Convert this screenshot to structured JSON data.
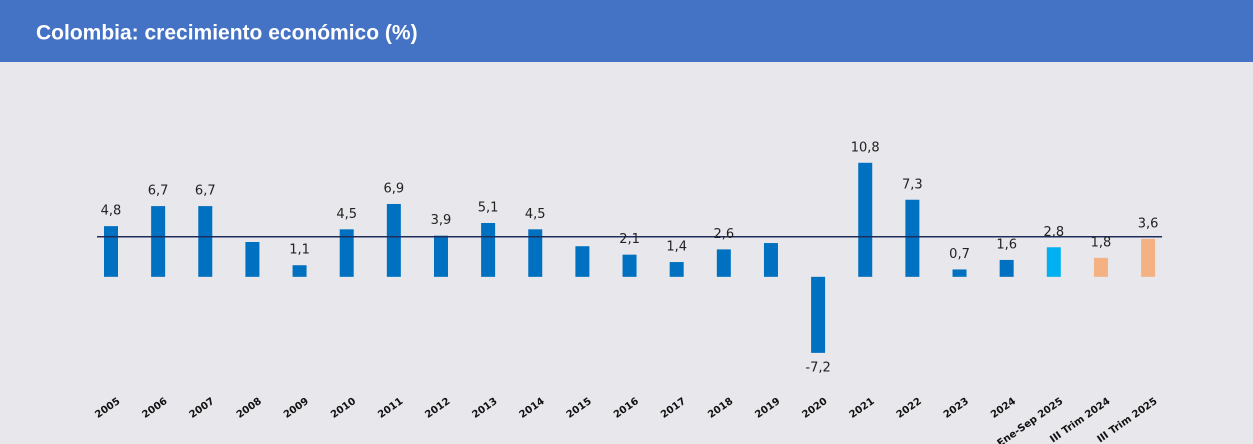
{
  "chart_data": {
    "type": "bar",
    "title": "Colombia: crecimiento económico (%)",
    "categories": [
      "2005",
      "2006",
      "2007",
      "2008",
      "2009",
      "2010",
      "2011",
      "2012",
      "2013",
      "2014",
      "2015",
      "2016",
      "2017",
      "2018",
      "2019",
      "2020",
      "2021",
      "2022",
      "2023",
      "2024",
      "Ene-Sep 2025",
      "III Trim 2024",
      "III Trim 2025"
    ],
    "values": [
      4.8,
      6.7,
      6.7,
      3.3,
      1.1,
      4.5,
      6.9,
      3.9,
      5.1,
      4.5,
      2.9,
      2.1,
      1.4,
      2.6,
      3.2,
      -7.2,
      10.8,
      7.3,
      0.7,
      1.6,
      2.8,
      1.8,
      3.6
    ],
    "value_labels": [
      "4,8",
      "6,7",
      "6,7",
      null,
      "1,1",
      "4,5",
      "6,9",
      "3,9",
      "5,1",
      "4,5",
      null,
      "2,1",
      "1,4",
      "2,6",
      null,
      "-7,2",
      "10,8",
      "7,3",
      "0,7",
      "1,6",
      "2,8",
      "1,8",
      "3,6"
    ],
    "colors": [
      "#0070c0",
      "#0070c0",
      "#0070c0",
      "#0070c0",
      "#0070c0",
      "#0070c0",
      "#0070c0",
      "#0070c0",
      "#0070c0",
      "#0070c0",
      "#0070c0",
      "#0070c0",
      "#0070c0",
      "#0070c0",
      "#0070c0",
      "#0070c0",
      "#0070c0",
      "#0070c0",
      "#0070c0",
      "#0070c0",
      "#00b0f0",
      "#f4b183",
      "#f4b183"
    ],
    "negative_label_color": "#ff0000",
    "reference_line": 3.8,
    "ylim": [
      -8.5,
      14
    ]
  }
}
